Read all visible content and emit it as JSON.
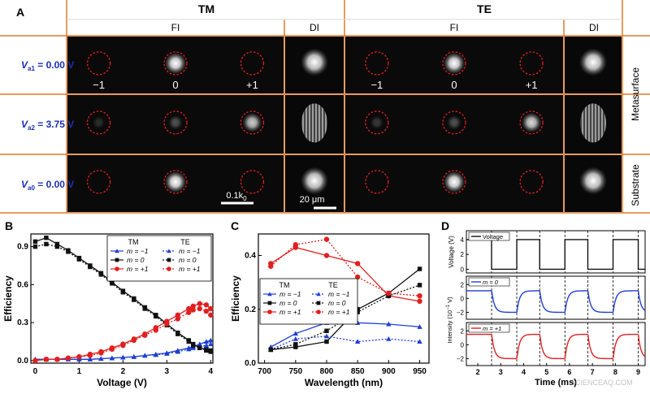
{
  "panel_a": {
    "label": "A",
    "group_tm": "TM",
    "group_te": "TE",
    "sub_fi": "FI",
    "sub_di": "DI",
    "rows": [
      {
        "label": "V",
        "sub": "a1",
        "value": " = 0.00 V",
        "side": "Metasurface"
      },
      {
        "label": "V",
        "sub": "a2",
        "value": " = 3.75 V",
        "side": ""
      },
      {
        "label": "V",
        "sub": "a0",
        "value": " = 0.00 V",
        "side": "Substrate"
      }
    ],
    "order_labels": [
      "−1",
      "0",
      "+1"
    ],
    "scalebar_k": "0.1k",
    "scalebar_k_sub": "0",
    "scalebar_um": "20 μm",
    "spot_brightness": {
      "tm_row1": [
        0.0,
        1.0,
        0.0
      ],
      "tm_row2": [
        0.15,
        0.3,
        0.8
      ],
      "tm_row3": [
        0.0,
        1.0,
        0.0
      ],
      "te_row1": [
        0.0,
        1.0,
        0.0
      ],
      "te_row2": [
        0.2,
        0.3,
        0.85
      ],
      "te_row3": [
        0.0,
        1.0,
        0.0
      ]
    },
    "colors": {
      "frame": "#e07a2a",
      "circle": "#e02020",
      "rowlabel": "#1a2fb0"
    }
  },
  "panel_b": {
    "label": "B",
    "chart_data": {
      "type": "line",
      "xlabel": "Voltage (V)",
      "ylabel": "Efficiency",
      "xlim": [
        -0.1,
        4.05
      ],
      "ylim": [
        -0.02,
        1.0
      ],
      "xticks": [
        0,
        1,
        2,
        3,
        4
      ],
      "yticks": [
        0.0,
        0.3,
        0.6,
        0.9
      ],
      "legend_headers": [
        "TM",
        "TE"
      ],
      "legend_labels": [
        "m = −1",
        "m = 0",
        "m = +1",
        "m = −1",
        "m = 0",
        "m = +1"
      ],
      "x": [
        0,
        0.25,
        0.5,
        0.75,
        1.0,
        1.25,
        1.5,
        1.75,
        2.0,
        2.25,
        2.5,
        2.75,
        3.0,
        3.25,
        3.5,
        3.6,
        3.75,
        3.9,
        4.0
      ],
      "series": [
        {
          "pol": "TM",
          "order": "-1",
          "color": "#1f3fd0",
          "marker": "triangle",
          "dash": false,
          "values": [
            0.01,
            0.01,
            0.01,
            0.01,
            0.01,
            0.01,
            0.015,
            0.02,
            0.025,
            0.03,
            0.04,
            0.05,
            0.06,
            0.08,
            0.1,
            0.11,
            0.13,
            0.15,
            0.16
          ]
        },
        {
          "pol": "TM",
          "order": "0",
          "color": "#111111",
          "marker": "square",
          "dash": false,
          "values": [
            0.94,
            0.97,
            0.92,
            0.87,
            0.81,
            0.75,
            0.69,
            0.62,
            0.55,
            0.49,
            0.42,
            0.36,
            0.29,
            0.22,
            0.16,
            0.13,
            0.1,
            0.09,
            0.08
          ]
        },
        {
          "pol": "TM",
          "order": "+1",
          "color": "#e02020",
          "marker": "circle",
          "dash": false,
          "values": [
            0.0,
            0.01,
            0.01,
            0.02,
            0.03,
            0.05,
            0.07,
            0.1,
            0.13,
            0.17,
            0.21,
            0.26,
            0.31,
            0.36,
            0.41,
            0.43,
            0.45,
            0.44,
            0.41
          ]
        },
        {
          "pol": "TE",
          "order": "-1",
          "color": "#1f3fd0",
          "marker": "triangle",
          "dash": true,
          "values": [
            0.01,
            0.01,
            0.01,
            0.01,
            0.01,
            0.01,
            0.015,
            0.02,
            0.025,
            0.03,
            0.04,
            0.045,
            0.055,
            0.07,
            0.09,
            0.1,
            0.11,
            0.12,
            0.13
          ]
        },
        {
          "pol": "TE",
          "order": "0",
          "color": "#111111",
          "marker": "square",
          "dash": true,
          "values": [
            0.9,
            0.92,
            0.9,
            0.86,
            0.8,
            0.74,
            0.68,
            0.61,
            0.54,
            0.48,
            0.41,
            0.35,
            0.28,
            0.21,
            0.15,
            0.12,
            0.1,
            0.08,
            0.07
          ]
        },
        {
          "pol": "TE",
          "order": "+1",
          "color": "#e02020",
          "marker": "circle",
          "dash": true,
          "values": [
            0.0,
            0.01,
            0.01,
            0.02,
            0.03,
            0.04,
            0.06,
            0.09,
            0.12,
            0.16,
            0.2,
            0.24,
            0.29,
            0.33,
            0.38,
            0.4,
            0.41,
            0.39,
            0.36
          ]
        }
      ]
    }
  },
  "panel_c": {
    "label": "C",
    "chart_data": {
      "type": "line",
      "xlabel": "Wavelength (nm)",
      "ylabel": "Efficiency",
      "xlim": [
        690,
        965
      ],
      "ylim": [
        0.0,
        0.48
      ],
      "xticks": [
        700,
        750,
        800,
        850,
        900,
        950
      ],
      "yticks": [
        0.0,
        0.2,
        0.4
      ],
      "legend_headers": [
        "TM",
        "TE"
      ],
      "legend_labels": [
        "m = −1",
        "m = 0",
        "m = +1",
        "m = −1",
        "m = 0",
        "m = +1"
      ],
      "x": [
        710,
        750,
        800,
        850,
        900,
        950
      ],
      "series": [
        {
          "pol": "TM",
          "order": "-1",
          "color": "#1f3fd0",
          "marker": "triangle",
          "dash": false,
          "values": [
            0.06,
            0.11,
            0.15,
            0.15,
            0.145,
            0.135
          ]
        },
        {
          "pol": "TM",
          "order": "0",
          "color": "#111111",
          "marker": "square",
          "dash": false,
          "values": [
            0.05,
            0.06,
            0.08,
            0.2,
            0.26,
            0.35
          ]
        },
        {
          "pol": "TM",
          "order": "+1",
          "color": "#e02020",
          "marker": "circle",
          "dash": false,
          "values": [
            0.37,
            0.43,
            0.4,
            0.37,
            0.25,
            0.23
          ]
        },
        {
          "pol": "TE",
          "order": "-1",
          "color": "#1f3fd0",
          "marker": "triangle",
          "dash": true,
          "values": [
            0.05,
            0.09,
            0.1,
            0.08,
            0.09,
            0.08
          ]
        },
        {
          "pol": "TE",
          "order": "0",
          "color": "#111111",
          "marker": "square",
          "dash": true,
          "values": [
            0.05,
            0.07,
            0.12,
            0.19,
            0.25,
            0.29
          ]
        },
        {
          "pol": "TE",
          "order": "+1",
          "color": "#e02020",
          "marker": "circle",
          "dash": true,
          "values": [
            0.36,
            0.44,
            0.46,
            0.32,
            0.26,
            0.25
          ]
        }
      ]
    }
  },
  "panel_d": {
    "label": "D",
    "xlabel": "Time (ms)",
    "xlim": [
      1.5,
      9.3
    ],
    "xticks": [
      2,
      3,
      4,
      5,
      6,
      7,
      8,
      9
    ],
    "dashed_times": [
      2.6,
      3.7,
      4.7,
      5.8,
      6.8,
      7.9,
      9.0
    ],
    "voltage": {
      "label": "Voltage (V)",
      "legend": "Voltage",
      "yticks": [
        0,
        2,
        4
      ],
      "ylim": [
        -0.5,
        5.2
      ],
      "color": "#111111",
      "levels": [
        4,
        0,
        4,
        0,
        4,
        0,
        4,
        0
      ],
      "breaks": [
        1.5,
        2.6,
        3.7,
        4.7,
        5.8,
        6.8,
        7.9,
        9.0,
        9.3
      ]
    },
    "intensity_label": "Intensity (10",
    "intensity_label_sup": "−1",
    "intensity_label_end": " V)",
    "m0": {
      "legend": "m = 0",
      "yticks": [
        -2,
        0,
        2
      ],
      "ylim": [
        -3,
        3.2
      ],
      "color": "#1f3fd0",
      "high": 1.1,
      "low": -2.0
    },
    "m1": {
      "legend": "m = +1",
      "yticks": [
        -2,
        0,
        2
      ],
      "ylim": [
        -3,
        3.2
      ],
      "color": "#e02020",
      "high": 1.5,
      "low": -2.0
    }
  },
  "watermark": "SCIENCEAQ.COM"
}
